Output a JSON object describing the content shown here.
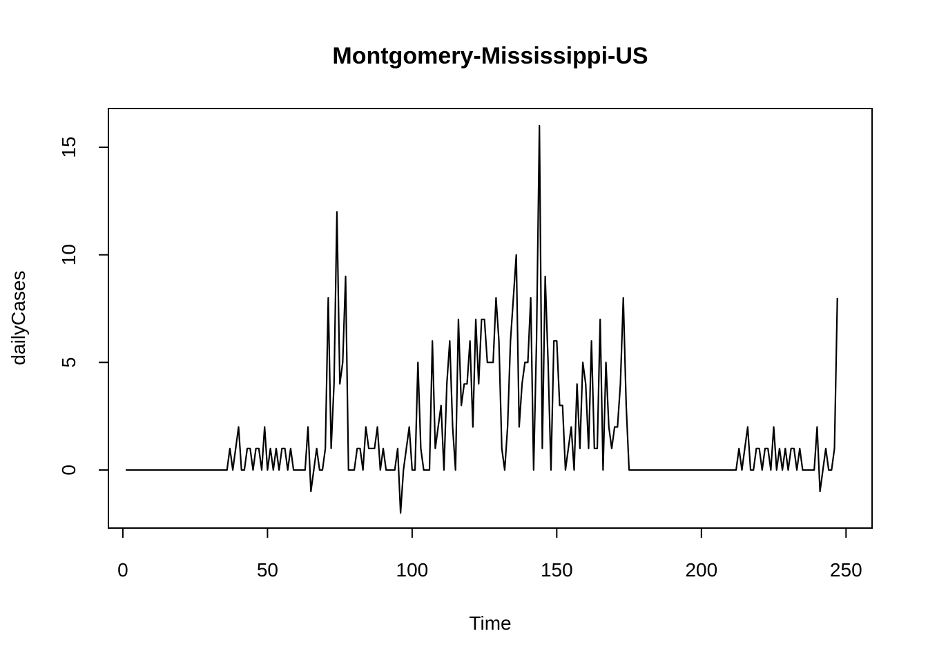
{
  "chart_data": {
    "type": "line",
    "title": "Montgomery-Mississippi-US",
    "xlabel": "Time",
    "ylabel": "dailyCases",
    "xlim": [
      -5,
      259
    ],
    "ylim": [
      -2.7,
      16.8
    ],
    "x_ticks": [
      0,
      50,
      100,
      150,
      200,
      250
    ],
    "y_ticks": [
      0,
      5,
      10,
      15
    ],
    "grid": false,
    "legend": "none",
    "line_color": "#000000",
    "series": [
      {
        "x_start": 1,
        "values": [
          0,
          0,
          0,
          0,
          0,
          0,
          0,
          0,
          0,
          0,
          0,
          0,
          0,
          0,
          0,
          0,
          0,
          0,
          0,
          0,
          0,
          0,
          0,
          0,
          0,
          0,
          0,
          0,
          0,
          0,
          0,
          0,
          0,
          0,
          0,
          0,
          1,
          0,
          1,
          2,
          0,
          0,
          1,
          1,
          0,
          1,
          1,
          0,
          2,
          0,
          1,
          0,
          1,
          0,
          1,
          1,
          0,
          1,
          0,
          0,
          0,
          0,
          0,
          2,
          -1,
          0,
          1,
          0,
          0,
          1,
          8,
          1,
          4,
          12,
          4,
          5,
          9,
          0,
          0,
          0,
          1,
          1,
          0,
          2,
          1,
          1,
          1,
          2,
          0,
          1,
          0,
          0,
          0,
          0,
          1,
          -2,
          0,
          1,
          2,
          0,
          0,
          5,
          1,
          0,
          0,
          0,
          6,
          1,
          2,
          3,
          0,
          4,
          6,
          2,
          0,
          7,
          3,
          4,
          4,
          6,
          2,
          7,
          4,
          7,
          7,
          5,
          5,
          5,
          8,
          6,
          1,
          0,
          2,
          6,
          8,
          10,
          2,
          4,
          5,
          5,
          8,
          0,
          6,
          16,
          1,
          9,
          5,
          0,
          6,
          6,
          3,
          3,
          0,
          1,
          2,
          0,
          4,
          1,
          5,
          4,
          1,
          6,
          1,
          1,
          7,
          0,
          5,
          2,
          1,
          2,
          2,
          4,
          8,
          3,
          0,
          0,
          0,
          0,
          0,
          0,
          0,
          0,
          0,
          0,
          0,
          0,
          0,
          0,
          0,
          0,
          0,
          0,
          0,
          0,
          0,
          0,
          0,
          0,
          0,
          0,
          0,
          0,
          0,
          0,
          0,
          0,
          0,
          0,
          0,
          0,
          0,
          0,
          1,
          0,
          1,
          2,
          0,
          0,
          1,
          1,
          0,
          1,
          1,
          0,
          2,
          0,
          1,
          0,
          1,
          0,
          1,
          1,
          0,
          1,
          0,
          0,
          0,
          0,
          0,
          2,
          -1,
          0,
          1,
          0,
          0,
          1,
          8
        ]
      }
    ]
  }
}
